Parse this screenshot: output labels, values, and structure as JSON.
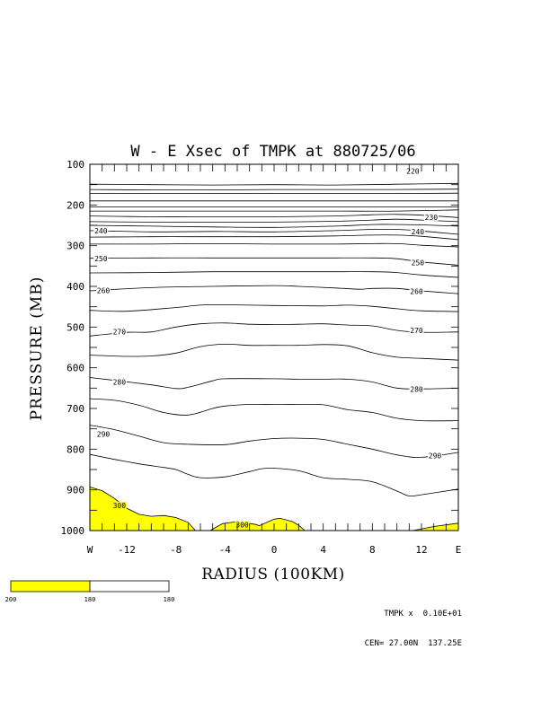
{
  "chart_data": {
    "type": "contour",
    "title": "W - E Xsec of TMPK at 880725/06",
    "xlabel": "RADIUS (100KM)",
    "ylabel": "PRESSURE (MB)",
    "xlim": [
      -15,
      15
    ],
    "ylim": [
      1000,
      100
    ],
    "x_ticks": [
      {
        "value": -15,
        "label": "W"
      },
      {
        "value": -12,
        "label": "-12"
      },
      {
        "value": -8,
        "label": "-8"
      },
      {
        "value": -4,
        "label": "-4"
      },
      {
        "value": 0,
        "label": "0"
      },
      {
        "value": 4,
        "label": "4"
      },
      {
        "value": 8,
        "label": "8"
      },
      {
        "value": 12,
        "label": "12"
      },
      {
        "value": 15,
        "label": "E"
      }
    ],
    "y_ticks": [
      100,
      200,
      300,
      400,
      500,
      600,
      700,
      800,
      900,
      1000
    ],
    "contour_labels": [
      {
        "text": "220",
        "x": 11.3,
        "y": 117
      },
      {
        "text": "230",
        "x": 12.8,
        "y": 230
      },
      {
        "text": "240",
        "x": -14.1,
        "y": 263
      },
      {
        "text": "240",
        "x": 11.7,
        "y": 265
      },
      {
        "text": "250",
        "x": -14.1,
        "y": 332
      },
      {
        "text": "250",
        "x": 11.7,
        "y": 341
      },
      {
        "text": "260",
        "x": -13.9,
        "y": 410
      },
      {
        "text": "260",
        "x": 11.6,
        "y": 412
      },
      {
        "text": "270",
        "x": -12.6,
        "y": 511
      },
      {
        "text": "270",
        "x": 11.6,
        "y": 508
      },
      {
        "text": "280",
        "x": -12.6,
        "y": 635
      },
      {
        "text": "280",
        "x": 11.6,
        "y": 653
      },
      {
        "text": "290",
        "x": -13.9,
        "y": 763
      },
      {
        "text": "290",
        "x": 13.1,
        "y": 816
      },
      {
        "text": "300",
        "x": -12.6,
        "y": 938
      },
      {
        "text": "300",
        "x": -2.6,
        "y": 986
      }
    ],
    "contours": [
      [
        [
          -15,
          149
        ],
        [
          -10,
          150
        ],
        [
          -5,
          151
        ],
        [
          0,
          150
        ],
        [
          5,
          151
        ],
        [
          10,
          149
        ],
        [
          15,
          147
        ]
      ],
      [
        [
          -15,
          162
        ],
        [
          -10,
          163
        ],
        [
          -5,
          163
        ],
        [
          0,
          162
        ],
        [
          5,
          162
        ],
        [
          10,
          162
        ],
        [
          15,
          161
        ]
      ],
      [
        [
          -15,
          172
        ],
        [
          -10,
          172
        ],
        [
          -5,
          172
        ],
        [
          0,
          172
        ],
        [
          5,
          172
        ],
        [
          10,
          172
        ],
        [
          15,
          171
        ]
      ],
      [
        [
          -15,
          190
        ],
        [
          -10,
          190
        ],
        [
          -5,
          190
        ],
        [
          0,
          190
        ],
        [
          5,
          190
        ],
        [
          10,
          190
        ],
        [
          15,
          190
        ]
      ],
      [
        [
          -15,
          205
        ],
        [
          -10,
          205
        ],
        [
          -5,
          205
        ],
        [
          0,
          205
        ],
        [
          5,
          205
        ],
        [
          10,
          205
        ],
        [
          15,
          205
        ]
      ],
      [
        [
          -15,
          215
        ],
        [
          -10,
          215
        ],
        [
          -5,
          215
        ],
        [
          0,
          215
        ],
        [
          5,
          215
        ],
        [
          10,
          215
        ],
        [
          15,
          212
        ]
      ],
      [
        [
          -15,
          227
        ],
        [
          -10,
          229
        ],
        [
          -5,
          229
        ],
        [
          0,
          229
        ],
        [
          5,
          227
        ],
        [
          8,
          224
        ],
        [
          10,
          223
        ],
        [
          12,
          225
        ],
        [
          15,
          231
        ]
      ],
      [
        [
          -15,
          241
        ],
        [
          -10,
          242
        ],
        [
          -5,
          242
        ],
        [
          0,
          242
        ],
        [
          5,
          240
        ],
        [
          8,
          237
        ],
        [
          10,
          235
        ],
        [
          12,
          237
        ],
        [
          15,
          241
        ]
      ],
      [
        [
          -15,
          250
        ],
        [
          -10,
          252
        ],
        [
          -5,
          254
        ],
        [
          0,
          255
        ],
        [
          5,
          252
        ],
        [
          8,
          248
        ],
        [
          10,
          248
        ],
        [
          12,
          249
        ],
        [
          15,
          252
        ]
      ],
      [
        [
          -15,
          263
        ],
        [
          -10,
          266
        ],
        [
          -5,
          265
        ],
        [
          0,
          266
        ],
        [
          5,
          263
        ],
        [
          8,
          260
        ],
        [
          10,
          260
        ],
        [
          12,
          264
        ],
        [
          15,
          272
        ]
      ],
      [
        [
          -15,
          279
        ],
        [
          -10,
          278
        ],
        [
          -5,
          278
        ],
        [
          0,
          278
        ],
        [
          5,
          276
        ],
        [
          8,
          274
        ],
        [
          10,
          274
        ],
        [
          12,
          277
        ],
        [
          15,
          285
        ]
      ],
      [
        [
          -15,
          296
        ],
        [
          -10,
          296
        ],
        [
          -5,
          295
        ],
        [
          0,
          296
        ],
        [
          5,
          296
        ],
        [
          8,
          295
        ],
        [
          10,
          295
        ],
        [
          12,
          299
        ],
        [
          15,
          303
        ]
      ],
      [
        [
          -15,
          331
        ],
        [
          -10,
          330
        ],
        [
          -5,
          330
        ],
        [
          0,
          330
        ],
        [
          5,
          330
        ],
        [
          8,
          330
        ],
        [
          10,
          332
        ],
        [
          12,
          340
        ],
        [
          15,
          348
        ]
      ],
      [
        [
          -15,
          367
        ],
        [
          -10,
          366
        ],
        [
          -5,
          364
        ],
        [
          0,
          364
        ],
        [
          5,
          364
        ],
        [
          8,
          364
        ],
        [
          10,
          366
        ],
        [
          12,
          372
        ],
        [
          15,
          378
        ]
      ],
      [
        [
          -15,
          411
        ],
        [
          -10,
          403
        ],
        [
          -5,
          400
        ],
        [
          0,
          398
        ],
        [
          2,
          400
        ],
        [
          5,
          404
        ],
        [
          7,
          407
        ],
        [
          8,
          405
        ],
        [
          10,
          405
        ],
        [
          12,
          411
        ],
        [
          15,
          418
        ]
      ],
      [
        [
          -15,
          459
        ],
        [
          -12,
          461
        ],
        [
          -8,
          452
        ],
        [
          -6,
          446
        ],
        [
          -4,
          445
        ],
        [
          0,
          447
        ],
        [
          4,
          448
        ],
        [
          6,
          446
        ],
        [
          8,
          449
        ],
        [
          10,
          455
        ],
        [
          12,
          460
        ],
        [
          15,
          462
        ]
      ],
      [
        [
          -15,
          522
        ],
        [
          -12,
          513
        ],
        [
          -10,
          512
        ],
        [
          -8,
          500
        ],
        [
          -6,
          492
        ],
        [
          -4,
          490
        ],
        [
          -2,
          493
        ],
        [
          0,
          494
        ],
        [
          2,
          493
        ],
        [
          4,
          492
        ],
        [
          6,
          495
        ],
        [
          8,
          497
        ],
        [
          10,
          508
        ],
        [
          12,
          513
        ],
        [
          15,
          512
        ]
      ],
      [
        [
          -15,
          569
        ],
        [
          -12,
          572
        ],
        [
          -10,
          571
        ],
        [
          -8,
          564
        ],
        [
          -6,
          548
        ],
        [
          -4,
          542
        ],
        [
          -2,
          545
        ],
        [
          0,
          545
        ],
        [
          2,
          545
        ],
        [
          4,
          543
        ],
        [
          6,
          546
        ],
        [
          8,
          563
        ],
        [
          10,
          574
        ],
        [
          12,
          577
        ],
        [
          15,
          581
        ]
      ],
      [
        [
          -15,
          624
        ],
        [
          -13,
          631
        ],
        [
          -10,
          642
        ],
        [
          -8,
          651
        ],
        [
          -7,
          648
        ],
        [
          -5,
          632
        ],
        [
          -4,
          627
        ],
        [
          0,
          627
        ],
        [
          2,
          628
        ],
        [
          4,
          628
        ],
        [
          6,
          628
        ],
        [
          8,
          635
        ],
        [
          10,
          650
        ],
        [
          12,
          652
        ],
        [
          15,
          650
        ]
      ],
      [
        [
          -15,
          676
        ],
        [
          -13,
          680
        ],
        [
          -11,
          692
        ],
        [
          -9,
          710
        ],
        [
          -7,
          716
        ],
        [
          -5,
          700
        ],
        [
          -4,
          694
        ],
        [
          -2,
          690
        ],
        [
          0,
          690
        ],
        [
          2,
          690
        ],
        [
          4,
          691
        ],
        [
          6,
          703
        ],
        [
          8,
          710
        ],
        [
          10,
          724
        ],
        [
          12,
          730
        ],
        [
          15,
          730
        ]
      ],
      [
        [
          -15,
          741
        ],
        [
          -13,
          752
        ],
        [
          -11,
          768
        ],
        [
          -9,
          784
        ],
        [
          -7,
          788
        ],
        [
          -4,
          789
        ],
        [
          -2,
          780
        ],
        [
          0,
          774
        ],
        [
          2,
          773
        ],
        [
          4,
          776
        ],
        [
          6,
          788
        ],
        [
          8,
          800
        ],
        [
          10,
          814
        ],
        [
          12,
          820
        ],
        [
          15,
          808
        ]
      ],
      [
        [
          -15,
          813
        ],
        [
          -13,
          825
        ],
        [
          -11,
          836
        ],
        [
          -9,
          845
        ],
        [
          -8,
          850
        ],
        [
          -7,
          862
        ],
        [
          -6,
          870
        ],
        [
          -4,
          868
        ],
        [
          -2,
          855
        ],
        [
          -1,
          848
        ],
        [
          0,
          847
        ],
        [
          2,
          853
        ],
        [
          4,
          870
        ],
        [
          6,
          874
        ],
        [
          8,
          880
        ],
        [
          10,
          903
        ],
        [
          11,
          915
        ],
        [
          12,
          912
        ],
        [
          15,
          898
        ]
      ]
    ],
    "shaded_regions": [
      [
        [
          -15,
          1000
        ],
        [
          -15,
          893
        ],
        [
          -14,
          902
        ],
        [
          -13,
          921
        ],
        [
          -12,
          945
        ],
        [
          -11,
          960
        ],
        [
          -10,
          965
        ],
        [
          -9,
          963
        ],
        [
          -8,
          968
        ],
        [
          -7,
          980
        ],
        [
          -6.4,
          1000
        ]
      ],
      [
        [
          -5.2,
          1000
        ],
        [
          -4.2,
          983
        ],
        [
          -3,
          978
        ],
        [
          -1.5,
          985
        ],
        [
          -1.2,
          988
        ],
        [
          0,
          972
        ],
        [
          0.5,
          970
        ],
        [
          1.5,
          978
        ],
        [
          2,
          987
        ],
        [
          2.5,
          1000
        ]
      ],
      [
        [
          11.3,
          1000
        ],
        [
          13,
          990
        ],
        [
          15,
          982
        ],
        [
          15,
          1000
        ]
      ]
    ],
    "fill_color": "#ffff00",
    "legend": {
      "segments": [
        {
          "label": "200",
          "color": "#ffff00"
        },
        {
          "label": "180",
          "color": "#ffffff"
        },
        {
          "label": "180",
          "color": null
        }
      ]
    },
    "footer": {
      "line1": "TMPK x  0.10E+01",
      "line2": "CEN= 27.00N  137.25E"
    }
  }
}
